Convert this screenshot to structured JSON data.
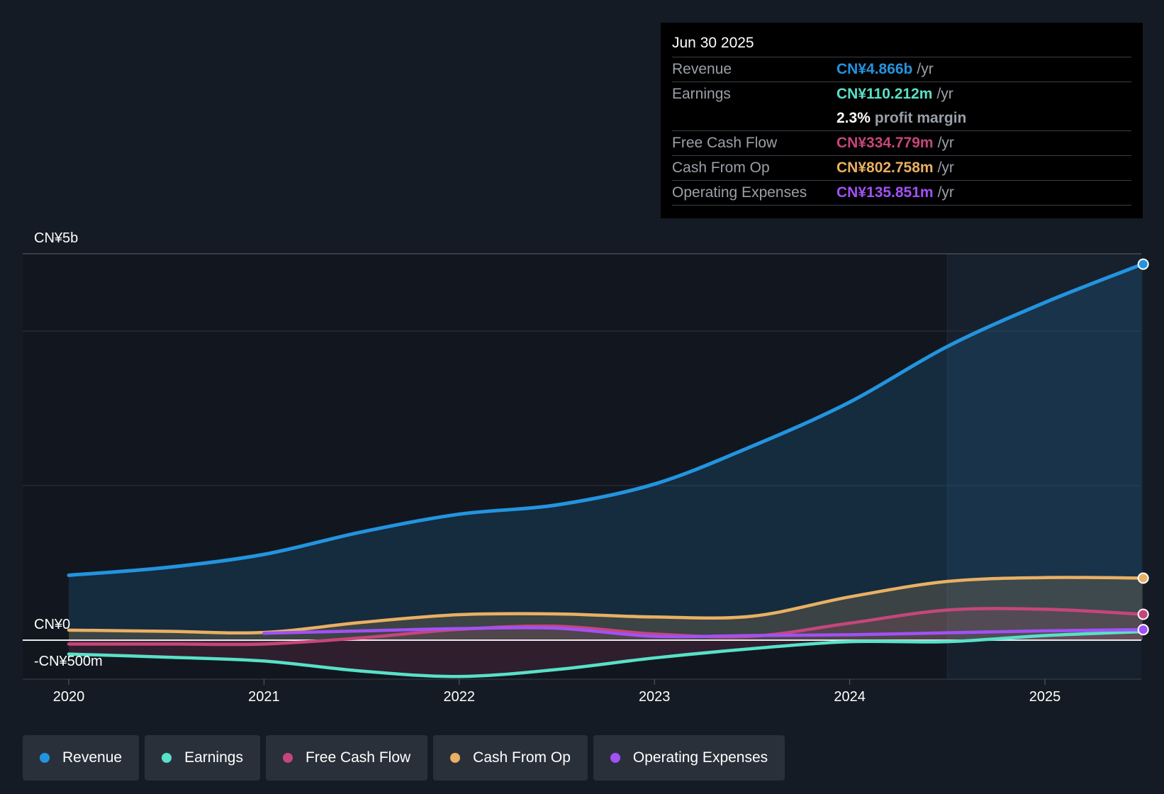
{
  "colors": {
    "revenue": "#2394df",
    "earnings": "#58e1c8",
    "fcf": "#c5467a",
    "cfo": "#e9b063",
    "opex": "#a151f5",
    "background": "#151b24"
  },
  "tooltip": {
    "date": "Jun 30 2025",
    "revenue_label": "Revenue",
    "revenue_value": "CN¥4.866b",
    "earnings_label": "Earnings",
    "earnings_value": "CN¥110.212m",
    "margin_value": "2.3%",
    "margin_text": "profit margin",
    "fcf_label": "Free Cash Flow",
    "fcf_value": "CN¥334.779m",
    "cfo_label": "Cash From Op",
    "cfo_value": "CN¥802.758m",
    "opex_label": "Operating Expenses",
    "opex_value": "CN¥135.851m",
    "unit": "/yr"
  },
  "legend": [
    {
      "label": "Revenue",
      "color_key": "revenue"
    },
    {
      "label": "Earnings",
      "color_key": "earnings"
    },
    {
      "label": "Free Cash Flow",
      "color_key": "fcf"
    },
    {
      "label": "Cash From Op",
      "color_key": "cfo"
    },
    {
      "label": "Operating Expenses",
      "color_key": "opex"
    }
  ],
  "chart_data": {
    "type": "area",
    "title": "",
    "xlabel": "",
    "ylabel": "",
    "x_ticks": [
      "2020",
      "2021",
      "2022",
      "2023",
      "2024",
      "2025"
    ],
    "y_ticks": [
      {
        "value": 5000,
        "label": "CN¥5b"
      },
      {
        "value": 0,
        "label": "CN¥0"
      },
      {
        "value": -500,
        "label": "-CN¥500m"
      }
    ],
    "ylim": [
      -500,
      5000
    ],
    "xlim": [
      2019.77,
      2025.5
    ],
    "forecast_start": 2024.5,
    "series": [
      {
        "name": "Revenue",
        "color_key": "revenue",
        "fill": true,
        "points": [
          [
            2020.0,
            840
          ],
          [
            2020.5,
            940
          ],
          [
            2021.0,
            1110
          ],
          [
            2021.5,
            1400
          ],
          [
            2022.0,
            1630
          ],
          [
            2022.5,
            1750
          ],
          [
            2023.0,
            2020
          ],
          [
            2023.5,
            2510
          ],
          [
            2024.0,
            3080
          ],
          [
            2024.5,
            3800
          ],
          [
            2025.0,
            4370
          ],
          [
            2025.5,
            4866
          ]
        ]
      },
      {
        "name": "Earnings",
        "color_key": "earnings",
        "fill": true,
        "points": [
          [
            2020.0,
            -180
          ],
          [
            2020.5,
            -220
          ],
          [
            2021.0,
            -270
          ],
          [
            2021.5,
            -400
          ],
          [
            2022.0,
            -470
          ],
          [
            2022.5,
            -380
          ],
          [
            2023.0,
            -230
          ],
          [
            2023.5,
            -110
          ],
          [
            2024.0,
            -20
          ],
          [
            2024.5,
            -20
          ],
          [
            2025.0,
            60
          ],
          [
            2025.5,
            110
          ]
        ]
      },
      {
        "name": "Free Cash Flow",
        "color_key": "fcf",
        "fill": true,
        "points": [
          [
            2020.0,
            -50
          ],
          [
            2020.5,
            -50
          ],
          [
            2021.0,
            -50
          ],
          [
            2021.5,
            30
          ],
          [
            2022.0,
            140
          ],
          [
            2022.5,
            180
          ],
          [
            2023.0,
            80
          ],
          [
            2023.5,
            50
          ],
          [
            2024.0,
            220
          ],
          [
            2024.5,
            390
          ],
          [
            2025.0,
            400
          ],
          [
            2025.5,
            335
          ]
        ]
      },
      {
        "name": "Cash From Op",
        "color_key": "cfo",
        "fill": true,
        "points": [
          [
            2020.0,
            130
          ],
          [
            2020.5,
            115
          ],
          [
            2021.0,
            100
          ],
          [
            2021.5,
            230
          ],
          [
            2022.0,
            330
          ],
          [
            2022.5,
            340
          ],
          [
            2023.0,
            300
          ],
          [
            2023.5,
            310
          ],
          [
            2024.0,
            560
          ],
          [
            2024.5,
            760
          ],
          [
            2025.0,
            810
          ],
          [
            2025.5,
            803
          ]
        ]
      },
      {
        "name": "Operating Expenses",
        "color_key": "opex",
        "fill": false,
        "points": [
          [
            2021.0,
            90
          ],
          [
            2021.5,
            120
          ],
          [
            2022.0,
            150
          ],
          [
            2022.5,
            155
          ],
          [
            2023.0,
            50
          ],
          [
            2023.5,
            60
          ],
          [
            2024.0,
            70
          ],
          [
            2024.5,
            95
          ],
          [
            2025.0,
            120
          ],
          [
            2025.5,
            136
          ]
        ]
      }
    ]
  }
}
